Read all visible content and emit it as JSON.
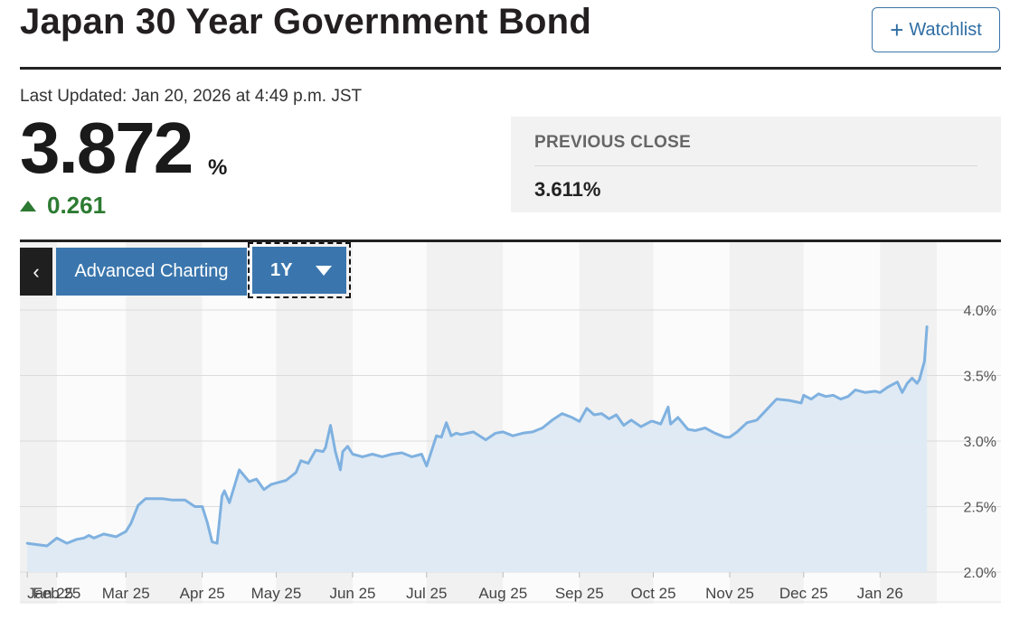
{
  "header": {
    "title": "Japan 30 Year Government Bond",
    "watchlist_label": "Watchlist"
  },
  "quote": {
    "last_updated": "Last Updated: Jan 20, 2026 at 4:49 p.m. JST",
    "price": "3.872",
    "unit": "%",
    "change": "0.261",
    "change_direction": "up",
    "change_color": "#2d7b32"
  },
  "previous_close": {
    "label": "PREVIOUS CLOSE",
    "value": "3.611%"
  },
  "toolbar": {
    "back_label": "‹",
    "advanced_label": "Advanced Charting",
    "range_label": "1Y"
  },
  "chart_data": {
    "type": "area",
    "title": "",
    "xlabel": "",
    "ylabel": "",
    "ylim": [
      2.0,
      4.0
    ],
    "yticks": [
      "2.0%",
      "2.5%",
      "3.0%",
      "3.5%",
      "4.0%"
    ],
    "ytick_values": [
      2.0,
      2.5,
      3.0,
      3.5,
      4.0
    ],
    "xticks": [
      "Jan 25",
      "Feb 25",
      "Mar 25",
      "Apr 25",
      "May 25",
      "Jun 25",
      "Jul 25",
      "Aug 25",
      "Sep 25",
      "Oct 25",
      "Nov 25",
      "Dec 25",
      "Jan 26"
    ],
    "xtick_dates": [
      "2025-01-20",
      "2025-02-01",
      "2025-03-01",
      "2025-04-01",
      "2025-05-01",
      "2025-06-01",
      "2025-07-01",
      "2025-08-01",
      "2025-09-01",
      "2025-10-01",
      "2025-11-01",
      "2025-12-01",
      "2026-01-01"
    ],
    "x_range": [
      "2025-01-17",
      "2026-01-24"
    ],
    "grid": true,
    "line_color": "#7fb1e0",
    "fill_color": "#dde9f3",
    "series": [
      {
        "x": [
          "2025-01-20",
          "2025-01-24",
          "2025-01-28",
          "2025-02-01",
          "2025-02-05",
          "2025-02-09",
          "2025-02-12",
          "2025-02-14",
          "2025-02-16",
          "2025-02-20",
          "2025-02-25",
          "2025-03-01",
          "2025-03-03",
          "2025-03-06",
          "2025-03-09",
          "2025-03-13",
          "2025-03-16",
          "2025-03-20",
          "2025-03-25",
          "2025-03-29",
          "2025-04-01",
          "2025-04-03",
          "2025-04-05",
          "2025-04-07",
          "2025-04-09",
          "2025-04-10",
          "2025-04-12",
          "2025-04-16",
          "2025-04-20",
          "2025-04-23",
          "2025-04-26",
          "2025-04-29",
          "2025-05-01",
          "2025-05-05",
          "2025-05-09",
          "2025-05-11",
          "2025-05-14",
          "2025-05-17",
          "2025-05-20",
          "2025-05-21",
          "2025-05-23",
          "2025-05-25",
          "2025-05-27",
          "2025-05-28",
          "2025-05-30",
          "2025-06-01",
          "2025-06-05",
          "2025-06-09",
          "2025-06-13",
          "2025-06-17",
          "2025-06-21",
          "2025-06-25",
          "2025-06-29",
          "2025-07-01",
          "2025-07-05",
          "2025-07-07",
          "2025-07-09",
          "2025-07-11",
          "2025-07-13",
          "2025-07-15",
          "2025-07-20",
          "2025-07-25",
          "2025-07-29",
          "2025-08-01",
          "2025-08-05",
          "2025-08-09",
          "2025-08-13",
          "2025-08-17",
          "2025-08-21",
          "2025-08-25",
          "2025-08-29",
          "2025-09-01",
          "2025-09-04",
          "2025-09-07",
          "2025-09-10",
          "2025-09-13",
          "2025-09-16",
          "2025-09-19",
          "2025-09-22",
          "2025-09-26",
          "2025-09-30",
          "2025-10-01",
          "2025-10-04",
          "2025-10-07",
          "2025-10-08",
          "2025-10-11",
          "2025-10-15",
          "2025-10-18",
          "2025-10-22",
          "2025-10-26",
          "2025-10-30",
          "2025-11-01",
          "2025-11-04",
          "2025-11-08",
          "2025-11-12",
          "2025-11-16",
          "2025-11-20",
          "2025-11-25",
          "2025-11-30",
          "2025-12-01",
          "2025-12-04",
          "2025-12-07",
          "2025-12-10",
          "2025-12-13",
          "2025-12-16",
          "2025-12-19",
          "2025-12-22",
          "2025-12-26",
          "2025-12-30",
          "2026-01-01",
          "2026-01-04",
          "2026-01-06",
          "2026-01-08",
          "2026-01-10",
          "2026-01-12",
          "2026-01-14",
          "2026-01-16",
          "2026-01-17",
          "2026-01-19",
          "2026-01-20"
        ],
        "y": [
          2.22,
          2.21,
          2.2,
          2.26,
          2.22,
          2.25,
          2.26,
          2.28,
          2.26,
          2.29,
          2.27,
          2.31,
          2.37,
          2.51,
          2.56,
          2.56,
          2.56,
          2.55,
          2.55,
          2.5,
          2.5,
          2.38,
          2.23,
          2.22,
          2.58,
          2.62,
          2.53,
          2.78,
          2.69,
          2.71,
          2.63,
          2.67,
          2.68,
          2.7,
          2.76,
          2.85,
          2.83,
          2.93,
          2.92,
          2.95,
          3.12,
          2.92,
          2.78,
          2.92,
          2.96,
          2.9,
          2.88,
          2.9,
          2.88,
          2.9,
          2.91,
          2.88,
          2.9,
          2.81,
          3.04,
          3.03,
          3.14,
          3.04,
          3.06,
          3.05,
          3.07,
          3.01,
          3.06,
          3.07,
          3.04,
          3.06,
          3.07,
          3.1,
          3.16,
          3.21,
          3.18,
          3.15,
          3.25,
          3.2,
          3.21,
          3.17,
          3.2,
          3.12,
          3.16,
          3.11,
          3.15,
          3.15,
          3.13,
          3.26,
          3.13,
          3.18,
          3.09,
          3.08,
          3.1,
          3.06,
          3.03,
          3.03,
          3.07,
          3.14,
          3.16,
          3.24,
          3.32,
          3.31,
          3.29,
          3.35,
          3.32,
          3.36,
          3.34,
          3.35,
          3.32,
          3.34,
          3.39,
          3.37,
          3.38,
          3.37,
          3.41,
          3.43,
          3.45,
          3.37,
          3.44,
          3.48,
          3.44,
          3.47,
          3.61,
          3.872
        ]
      }
    ]
  }
}
